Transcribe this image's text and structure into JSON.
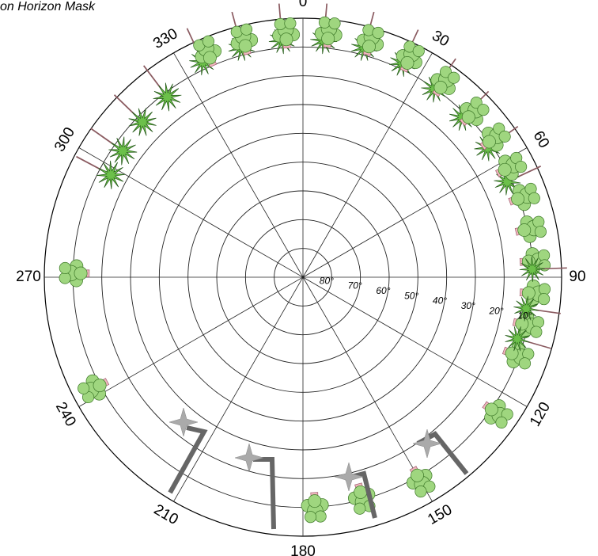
{
  "title": "on Horizon Mask",
  "azimuth_labels": [
    "0",
    "30",
    "60",
    "90",
    "120",
    "150",
    "180",
    "210",
    "240",
    "270",
    "300",
    "330"
  ],
  "elevation_labels": [
    "80°",
    "70°",
    "60°",
    "50°",
    "40°",
    "30°",
    "20°",
    "10°"
  ]
}
